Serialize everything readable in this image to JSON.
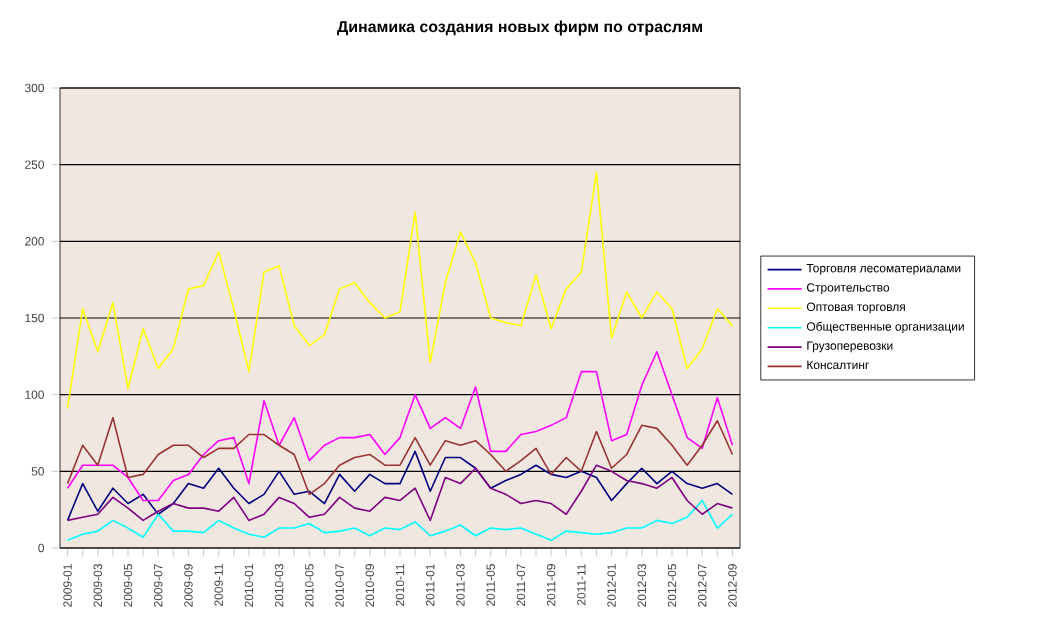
{
  "chart_data": {
    "type": "line",
    "title": "Динамика создания новых фирм по отраслям",
    "categories": [
      "2009-01",
      null,
      "2009-03",
      null,
      "2009-05",
      null,
      "2009-07",
      null,
      "2009-09",
      null,
      "2009-11",
      null,
      "2010-01",
      null,
      "2010-03",
      null,
      "2010-05",
      null,
      "2010-07",
      null,
      "2010-09",
      null,
      "2010-11",
      null,
      "2011-01",
      null,
      "2011-03",
      null,
      "2011-05",
      null,
      "2011-07",
      null,
      "2011-09",
      null,
      "2011-11",
      null,
      "2012-01",
      null,
      "2012-03",
      null,
      "2012-05",
      null,
      "2012-07",
      null,
      "2012-09"
    ],
    "ylim": [
      0,
      300
    ],
    "yticks": [
      0,
      50,
      100,
      150,
      200,
      250,
      300
    ],
    "grid": "y",
    "legend": "right",
    "marker": "none",
    "series": [
      {
        "name": "Торговля лесоматериалами",
        "color": "#000080",
        "values": [
          18,
          42,
          24,
          39,
          29,
          35,
          22,
          29,
          42,
          39,
          52,
          39,
          29,
          35,
          50,
          35,
          37,
          29,
          48,
          37,
          48,
          42,
          42,
          63,
          37,
          59,
          59,
          52,
          39,
          44,
          48,
          54,
          48,
          46,
          50,
          46,
          31,
          42,
          52,
          42,
          50,
          42,
          39,
          42,
          35
        ]
      },
      {
        "name": "Строительство",
        "color": "#ff00ff",
        "values": [
          39,
          54,
          54,
          54,
          46,
          31,
          31,
          44,
          48,
          61,
          70,
          72,
          42,
          96,
          67,
          85,
          57,
          67,
          72,
          72,
          74,
          61,
          72,
          100,
          78,
          85,
          78,
          105,
          63,
          63,
          74,
          76,
          80,
          85,
          115,
          115,
          70,
          74,
          106,
          128,
          100,
          72,
          65,
          98,
          67
        ]
      },
      {
        "name": "Оптовая торговля",
        "color": "#ffff00",
        "values": [
          91,
          156,
          128,
          160,
          104,
          143,
          117,
          130,
          169,
          171,
          193,
          156,
          115,
          180,
          184,
          145,
          132,
          139,
          169,
          173,
          160,
          150,
          154,
          219,
          121,
          173,
          206,
          186,
          150,
          147,
          145,
          178,
          143,
          169,
          180,
          245,
          137,
          167,
          150,
          167,
          156,
          117,
          130,
          156,
          145
        ]
      },
      {
        "name": "Общественные организации",
        "color": "#00ffff",
        "values": [
          5,
          9,
          11,
          18,
          13,
          7,
          22,
          11,
          11,
          10,
          18,
          13,
          9,
          7,
          13,
          13,
          16,
          10,
          11,
          13,
          8,
          13,
          12,
          17,
          8,
          11,
          15,
          8,
          13,
          12,
          13,
          9,
          5,
          11,
          10,
          9,
          10,
          13,
          13,
          18,
          16,
          20,
          31,
          13,
          22
        ]
      },
      {
        "name": "Грузоперевозки",
        "color": "#800080",
        "values": [
          18,
          20,
          22,
          33,
          26,
          18,
          24,
          29,
          26,
          26,
          24,
          33,
          18,
          22,
          33,
          29,
          20,
          22,
          33,
          26,
          24,
          33,
          31,
          39,
          18,
          46,
          42,
          52,
          39,
          35,
          29,
          31,
          29,
          22,
          37,
          54,
          50,
          44,
          42,
          39,
          46,
          31,
          22,
          29,
          26
        ]
      },
      {
        "name": "Консалтинг",
        "color": "#993333",
        "values": [
          42,
          67,
          54,
          85,
          46,
          48,
          61,
          67,
          67,
          59,
          65,
          65,
          74,
          74,
          67,
          61,
          35,
          42,
          54,
          59,
          61,
          54,
          54,
          72,
          54,
          70,
          67,
          70,
          61,
          50,
          57,
          65,
          48,
          59,
          50,
          76,
          52,
          61,
          80,
          78,
          67,
          54,
          67,
          83,
          61
        ]
      }
    ]
  }
}
